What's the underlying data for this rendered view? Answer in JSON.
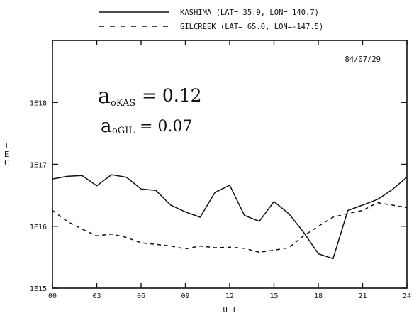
{
  "chart_data": {
    "type": "line",
    "ylabel": "T E C",
    "xlabel": "U T",
    "date_label": "84/07/29",
    "y_scale": "log",
    "ylim": [
      1000000000000000.0,
      1e+19
    ],
    "xlim": [
      0,
      24
    ],
    "x_ticks": [
      0,
      3,
      6,
      9,
      12,
      15,
      18,
      21,
      24
    ],
    "x_tick_labels": [
      "00",
      "03",
      "06",
      "09",
      "12",
      "15",
      "18",
      "21",
      "24"
    ],
    "y_ticks": [
      1000000000000000.0,
      1e+16,
      1e+17,
      1e+18
    ],
    "y_tick_labels": [
      "1E15",
      "1E16",
      "1E17",
      "1E18"
    ],
    "legend_position": "above plot",
    "annotations": {
      "line1_main": "a",
      "line1_sub": "oKAS",
      "line1_value": "= 0.12",
      "line2_main": "a",
      "line2_sub": "oGIL",
      "line2_value": "= 0.07"
    },
    "series": [
      {
        "name": "KASHIMA",
        "legend_text": "KASHIMA  (LAT= 35.9, LON= 140.7)",
        "style": "solid",
        "x": [
          0,
          1,
          2,
          3,
          4,
          5,
          6,
          7,
          8,
          9,
          10,
          11,
          12,
          13,
          14,
          15,
          16,
          17,
          18,
          19,
          20,
          21,
          22,
          23,
          24
        ],
        "y": [
          5.8e+16,
          6.4e+16,
          6.6e+16,
          4.5e+16,
          6.8e+16,
          6.2e+16,
          4e+16,
          3.8e+16,
          2.2e+16,
          1.7e+16,
          1.4e+16,
          3.5e+16,
          4.6e+16,
          1.5e+16,
          1.2e+16,
          2.5e+16,
          1.6e+16,
          8000000000000000.0,
          3600000000000000.0,
          3000000000000000.0,
          1.8e+16,
          2.2e+16,
          2.7e+16,
          3.9e+16,
          6.2e+16
        ]
      },
      {
        "name": "GILCREEK",
        "legend_text": "GILCREEK (LAT= 65.0, LON=-147.5)",
        "style": "dashed",
        "x": [
          0,
          1,
          2,
          3,
          4,
          5,
          6,
          7,
          8,
          9,
          10,
          11,
          12,
          13,
          14,
          15,
          16,
          17,
          18,
          19,
          20,
          21,
          22,
          23,
          24
        ],
        "y": [
          1.8e+16,
          1.2e+16,
          9000000000000000.0,
          7000000000000000.0,
          7500000000000000.0,
          6600000000000000.0,
          5400000000000000.0,
          5100000000000000.0,
          4800000000000000.0,
          4300000000000000.0,
          4800000000000000.0,
          4500000000000000.0,
          4600000000000000.0,
          4400000000000000.0,
          3800000000000000.0,
          4100000000000000.0,
          4500000000000000.0,
          7000000000000000.0,
          1e+16,
          1.4e+16,
          1.6e+16,
          1.8e+16,
          2.4e+16,
          2.2e+16,
          2e+16
        ]
      }
    ]
  }
}
